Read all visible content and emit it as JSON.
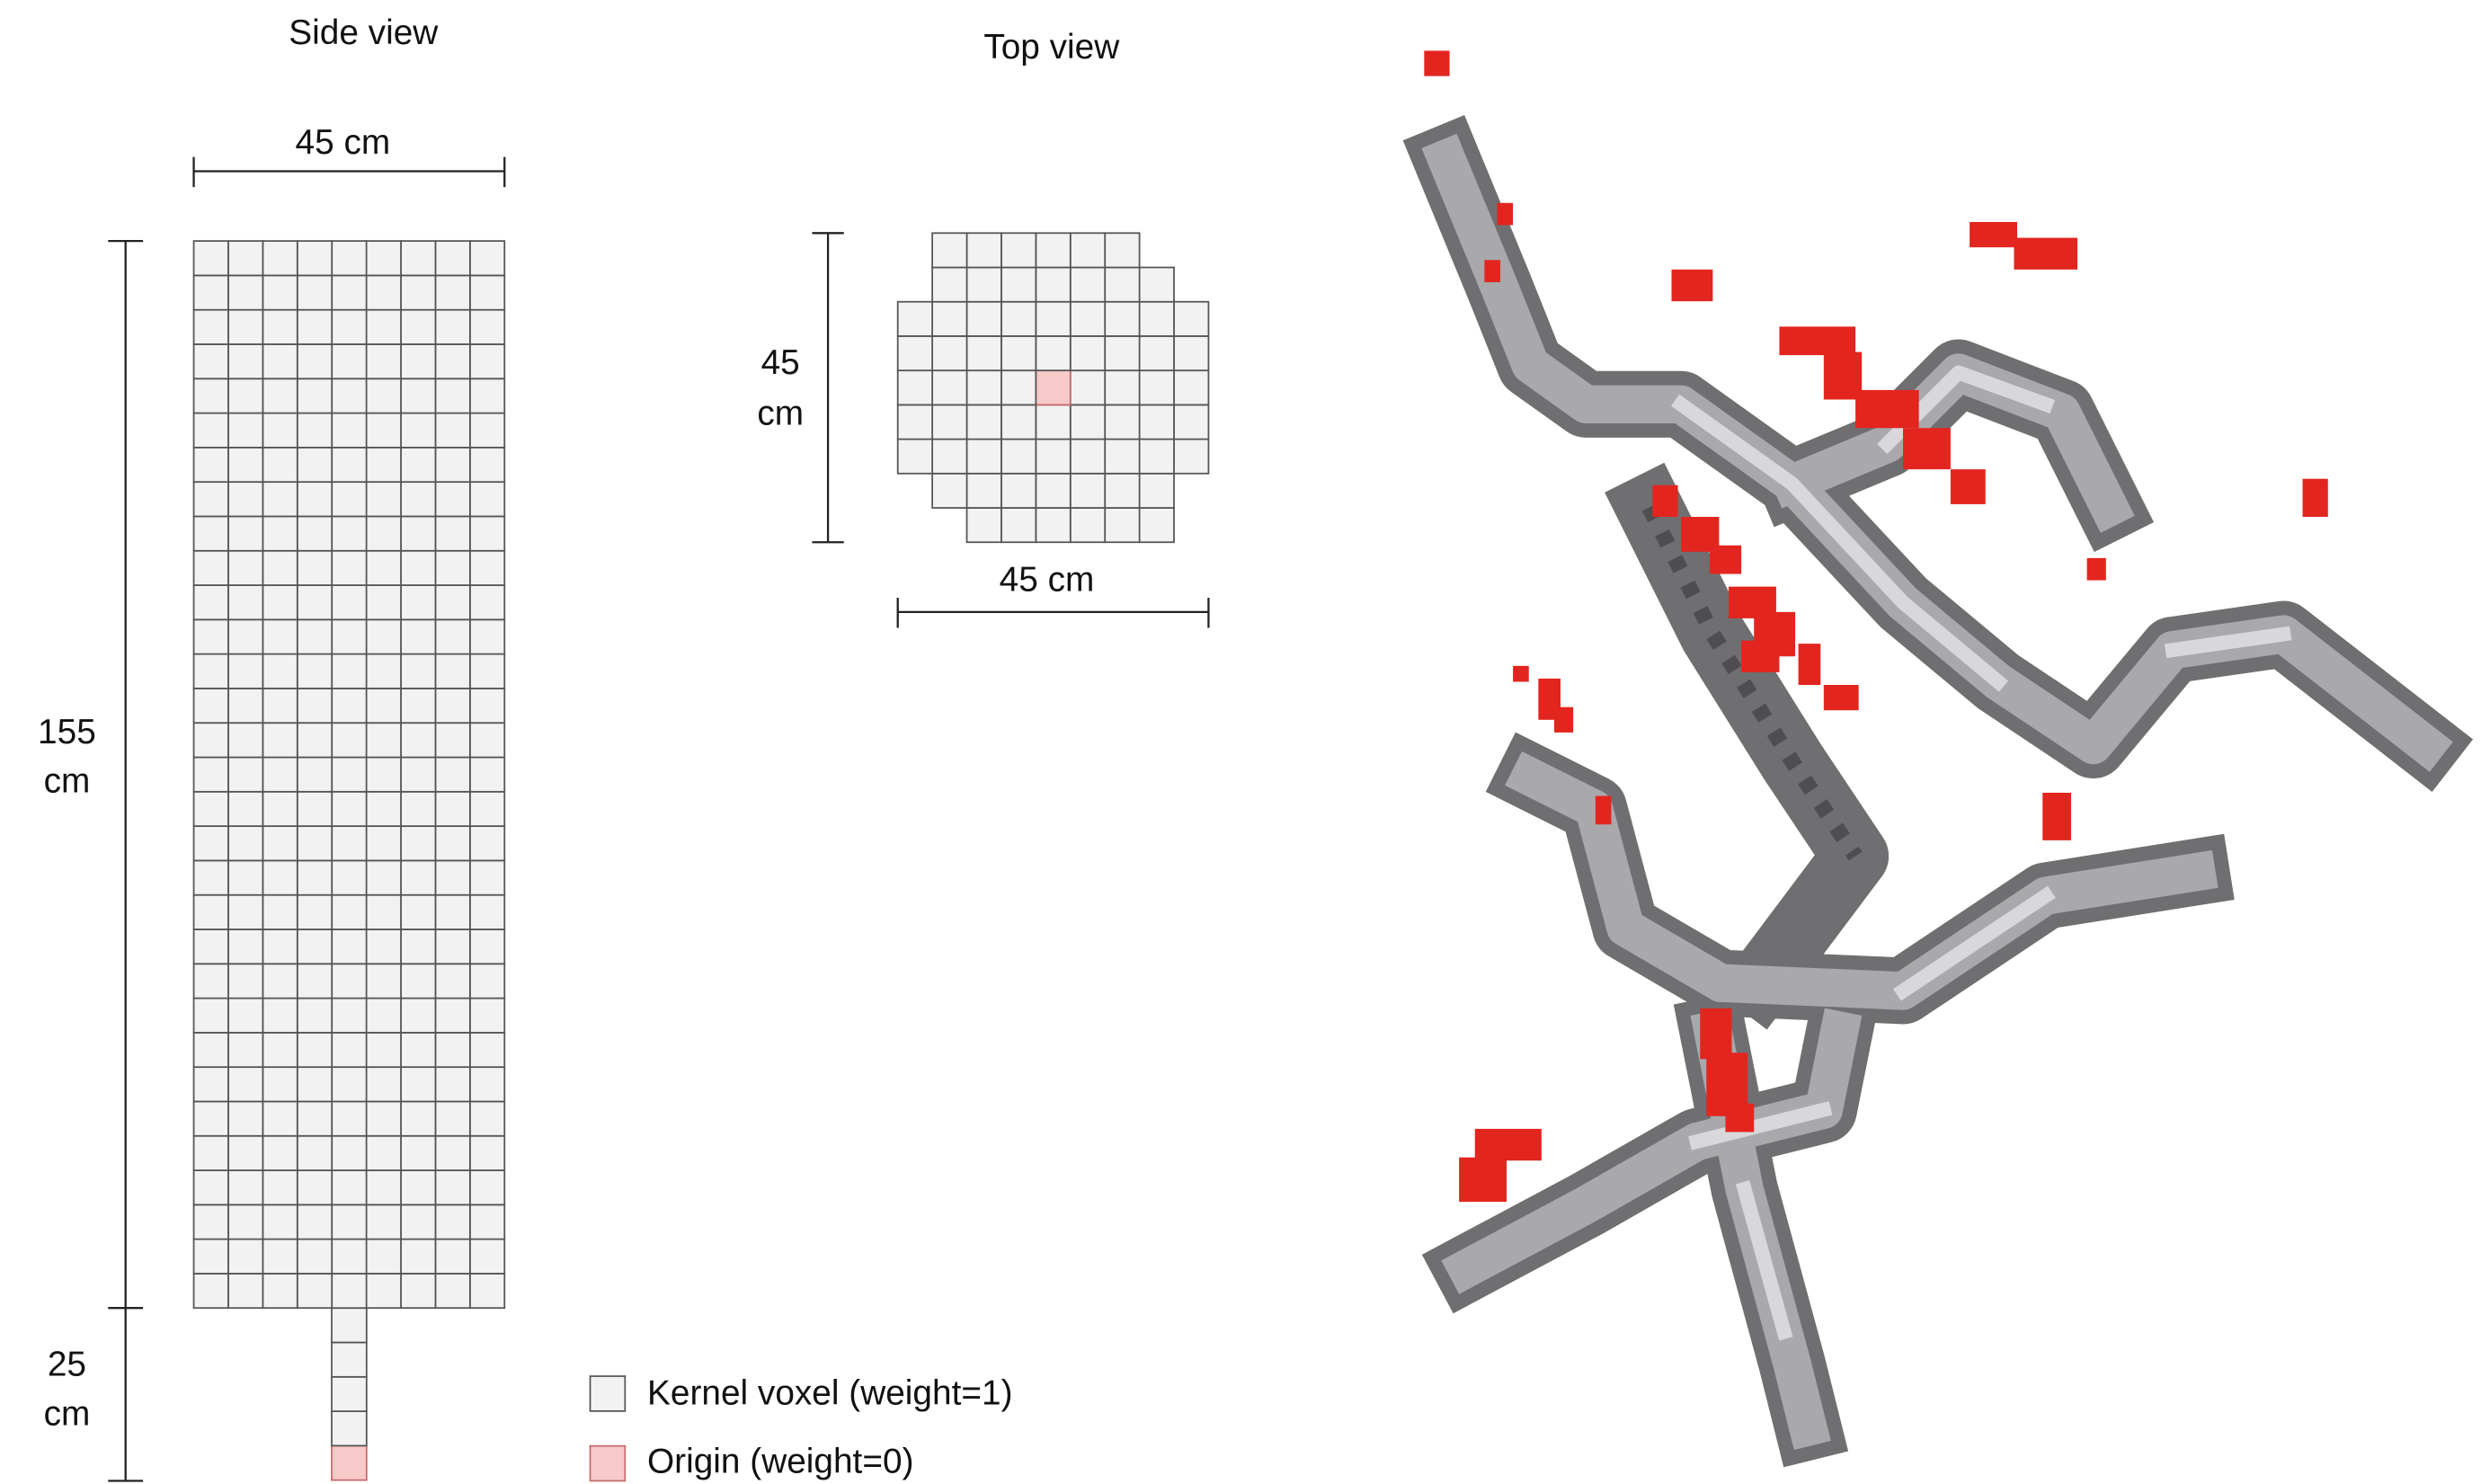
{
  "side_view": {
    "title": "Side view",
    "width_label": "45 cm",
    "height_label": [
      "155",
      "cm"
    ],
    "tail_label": [
      "25",
      "cm"
    ]
  },
  "top_view": {
    "title": "Top view",
    "height_label": [
      "45",
      "cm"
    ],
    "width_label": "45 cm"
  },
  "legend": [
    {
      "label": "Kernel voxel (weight=1)"
    },
    {
      "label": "Origin (weight=0)"
    }
  ]
}
